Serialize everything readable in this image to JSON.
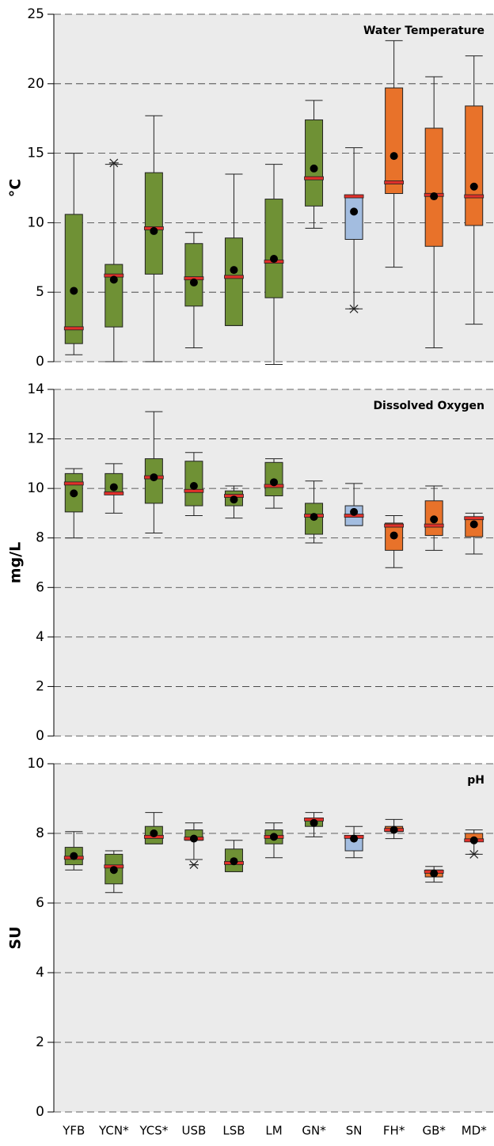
{
  "chart_data": [
    {
      "type": "box",
      "title": "Water Temperature",
      "y_label": "°C",
      "colors": [
        "#6f9135",
        "#6f9135",
        "#6f9135",
        "#6f9135",
        "#6f9135",
        "#6f9135",
        "#6f9135",
        "#a3bde0",
        "#e8722a",
        "#e8722a",
        "#e8722a"
      ],
      "min": [
        0.5,
        0,
        0,
        1.0,
        2.6,
        -0.2,
        9.6,
        3.8,
        6.8,
        1.0,
        2.7
      ],
      "q1": [
        1.3,
        2.5,
        6.3,
        4.0,
        2.6,
        4.6,
        11.2,
        8.8,
        12.1,
        8.3,
        9.8
      ],
      "median": [
        2.4,
        6.2,
        9.6,
        6.0,
        6.1,
        7.2,
        13.2,
        11.9,
        12.9,
        12.0,
        11.9
      ],
      "q3": [
        10.6,
        7.0,
        13.6,
        8.5,
        8.9,
        11.7,
        17.4,
        12.0,
        19.7,
        16.8,
        18.4
      ],
      "max": [
        15.0,
        14.2,
        17.7,
        9.3,
        13.5,
        14.2,
        18.8,
        15.4,
        23.1,
        20.5,
        22.0
      ],
      "mean": [
        5.1,
        5.9,
        9.4,
        5.7,
        6.6,
        7.4,
        13.9,
        10.8,
        14.8,
        11.9,
        12.6
      ],
      "outliers": [
        [],
        [
          14.3
        ],
        [],
        [],
        [],
        [],
        [],
        [
          3.8
        ],
        [],
        [],
        []
      ],
      "ylim": [
        0,
        25
      ],
      "yticks": [
        0,
        5,
        10,
        15,
        20,
        25
      ],
      "grid": true
    },
    {
      "type": "box",
      "title": "Dissolved Oxygen",
      "y_label": "mg/L",
      "colors": [
        "#6f9135",
        "#6f9135",
        "#6f9135",
        "#6f9135",
        "#6f9135",
        "#6f9135",
        "#6f9135",
        "#a3bde0",
        "#e8722a",
        "#e8722a",
        "#e8722a"
      ],
      "min": [
        8.0,
        9.0,
        8.2,
        8.9,
        8.8,
        9.2,
        7.8,
        8.5,
        6.8,
        7.5,
        7.35
      ],
      "q1": [
        9.05,
        9.8,
        9.4,
        9.3,
        9.3,
        9.7,
        8.15,
        8.5,
        7.5,
        8.1,
        8.05
      ],
      "median": [
        10.2,
        9.8,
        10.45,
        9.9,
        9.7,
        10.1,
        8.9,
        8.9,
        8.5,
        8.5,
        8.8
      ],
      "q3": [
        10.6,
        10.6,
        11.2,
        11.1,
        9.9,
        11.05,
        9.4,
        9.3,
        8.6,
        9.5,
        8.85
      ],
      "max": [
        10.8,
        11.0,
        13.1,
        11.45,
        10.1,
        11.2,
        10.3,
        10.2,
        8.9,
        10.1,
        9.0
      ],
      "mean": [
        9.8,
        10.05,
        10.45,
        10.1,
        9.55,
        10.25,
        8.85,
        9.05,
        8.1,
        8.75,
        8.55
      ],
      "outliers": [
        [],
        [],
        [],
        [],
        [],
        [],
        [],
        [],
        [],
        [],
        []
      ],
      "ylim": [
        0,
        14
      ],
      "yticks": [
        0,
        2,
        4,
        6,
        8,
        10,
        12,
        14
      ],
      "grid": true
    },
    {
      "type": "box",
      "title": "pH",
      "y_label": "SU",
      "categories": [
        "YFB",
        "YCN*",
        "YCS*",
        "USB",
        "LSB",
        "LM",
        "GN*",
        "SN",
        "FH*",
        "GB*",
        "MD*"
      ],
      "colors": [
        "#6f9135",
        "#6f9135",
        "#6f9135",
        "#6f9135",
        "#6f9135",
        "#6f9135",
        "#6f9135",
        "#a3bde0",
        "#e8722a",
        "#e8722a",
        "#e8722a"
      ],
      "min": [
        6.95,
        6.3,
        7.7,
        7.25,
        6.9,
        7.3,
        7.9,
        7.3,
        7.85,
        6.6,
        7.4
      ],
      "q1": [
        7.1,
        6.55,
        7.7,
        7.8,
        6.9,
        7.7,
        8.2,
        7.5,
        8.05,
        6.75,
        7.8
      ],
      "median": [
        7.3,
        7.05,
        7.9,
        7.85,
        7.15,
        7.9,
        8.4,
        7.9,
        8.1,
        6.9,
        7.8
      ],
      "q3": [
        7.6,
        7.4,
        8.2,
        8.1,
        7.55,
        8.1,
        8.4,
        7.9,
        8.2,
        6.95,
        8.0
      ],
      "max": [
        8.05,
        7.5,
        8.6,
        8.3,
        7.8,
        8.3,
        8.6,
        8.2,
        8.4,
        7.05,
        8.1
      ],
      "mean": [
        7.35,
        6.95,
        8.0,
        7.85,
        7.2,
        7.9,
        8.3,
        7.85,
        8.1,
        6.85,
        7.8
      ],
      "outliers": [
        [],
        [],
        [],
        [
          7.1
        ],
        [],
        [],
        [],
        [],
        [],
        [],
        [
          7.4
        ]
      ],
      "ylim": [
        0,
        10
      ],
      "yticks": [
        0,
        2,
        4,
        6,
        8,
        10
      ],
      "grid": true
    }
  ]
}
